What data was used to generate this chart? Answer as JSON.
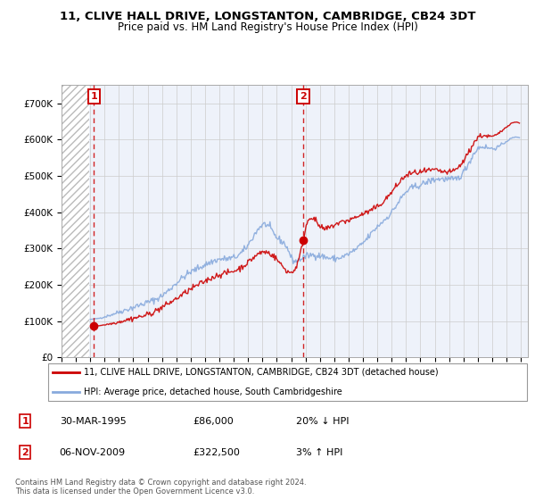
{
  "title1": "11, CLIVE HALL DRIVE, LONGSTANTON, CAMBRIDGE, CB24 3DT",
  "title2": "Price paid vs. HM Land Registry's House Price Index (HPI)",
  "ylim": [
    0,
    750000
  ],
  "yticks": [
    0,
    100000,
    200000,
    300000,
    400000,
    500000,
    600000,
    700000
  ],
  "ytick_labels": [
    "£0",
    "£100K",
    "£200K",
    "£300K",
    "£400K",
    "£500K",
    "£600K",
    "£700K"
  ],
  "transaction1_date": 1995.25,
  "transaction1_price": 86000,
  "transaction2_date": 2009.84,
  "transaction2_price": 322500,
  "legend_line1": "11, CLIVE HALL DRIVE, LONGSTANTON, CAMBRIDGE, CB24 3DT (detached house)",
  "legend_line2": "HPI: Average price, detached house, South Cambridgeshire",
  "table_row1": [
    "1",
    "30-MAR-1995",
    "£86,000",
    "20% ↓ HPI"
  ],
  "table_row2": [
    "2",
    "06-NOV-2009",
    "£322,500",
    "3% ↑ HPI"
  ],
  "footer": "Contains HM Land Registry data © Crown copyright and database right 2024.\nThis data is licensed under the Open Government Licence v3.0.",
  "bg_color": "#eef2fa",
  "line_color_red": "#cc0000",
  "line_color_blue": "#88aadd",
  "dashed_line_color": "#cc0000",
  "box_color": "#cc0000",
  "grid_color": "#cccccc",
  "xlim_start": 1993.0,
  "xlim_end": 2025.5,
  "xticks": [
    1993,
    1994,
    1995,
    1996,
    1997,
    1998,
    1999,
    2000,
    2001,
    2002,
    2003,
    2004,
    2005,
    2006,
    2007,
    2008,
    2009,
    2010,
    2011,
    2012,
    2013,
    2014,
    2015,
    2016,
    2017,
    2018,
    2019,
    2020,
    2021,
    2022,
    2023,
    2024,
    2025
  ]
}
